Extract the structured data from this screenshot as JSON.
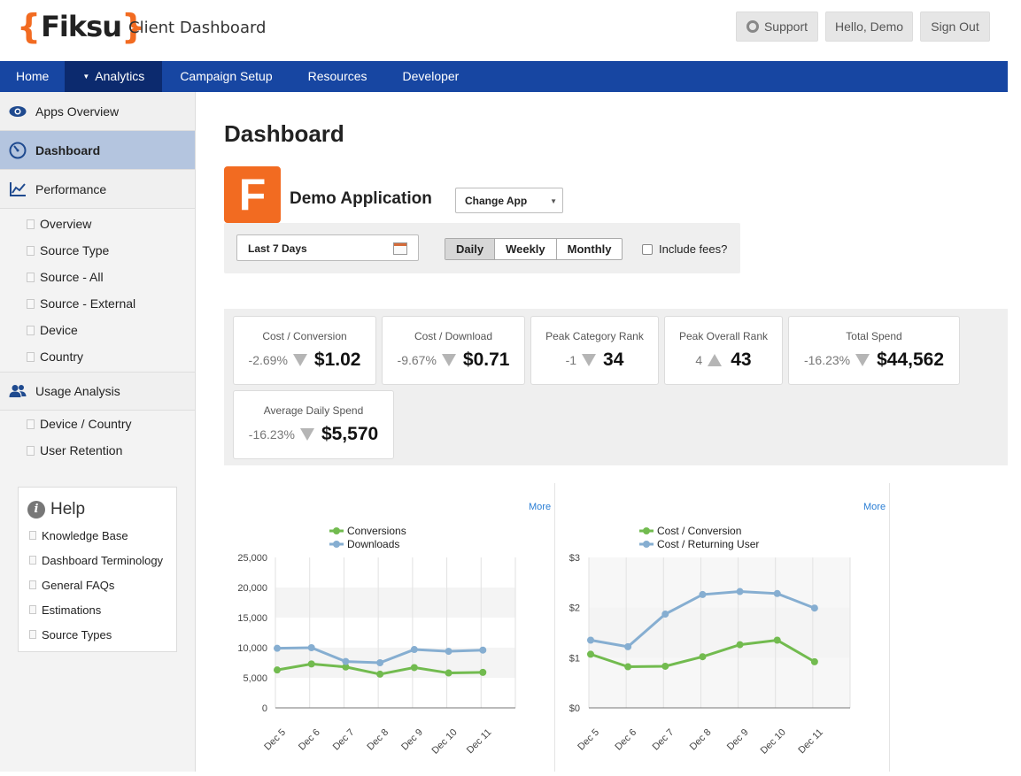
{
  "header": {
    "logo_open": "{",
    "logo_word": "Fiksu",
    "logo_close": "}",
    "title": "Client Dashboard",
    "support": "Support",
    "hello": "Hello, Demo",
    "signout": "Sign Out"
  },
  "nav": {
    "items": [
      "Home",
      "Analytics",
      "Campaign Setup",
      "Resources",
      "Developer"
    ],
    "active": "Analytics"
  },
  "sidebar": {
    "apps_overview": "Apps Overview",
    "dashboard": "Dashboard",
    "performance": "Performance",
    "performance_items": [
      "Overview",
      "Source Type",
      "Source - All",
      "Source - External",
      "Device",
      "Country"
    ],
    "usage_analysis": "Usage Analysis",
    "usage_items": [
      "Device / Country",
      "User Retention"
    ]
  },
  "help": {
    "title": "Help",
    "links": [
      "Knowledge Base",
      "Dashboard Terminology",
      "General FAQs",
      "Estimations",
      "Source Types"
    ]
  },
  "main": {
    "title": "Dashboard",
    "app_letter": "F",
    "app_name": "Demo Application",
    "change_app": "Change App",
    "date_range": "Last 7 Days",
    "periods": [
      "Daily",
      "Weekly",
      "Monthly"
    ],
    "selected_period": "Daily",
    "include_fees": "Include fees?",
    "accent": "#f26b21",
    "nav_color": "#1746a2"
  },
  "kpis": [
    {
      "label": "Cost / Conversion",
      "change": "-2.69%",
      "direction": "down",
      "value": "$1.02"
    },
    {
      "label": "Cost / Download",
      "change": "-9.67%",
      "direction": "down",
      "value": "$0.71"
    },
    {
      "label": "Peak Category Rank",
      "change": "-1",
      "direction": "down",
      "value": "34"
    },
    {
      "label": "Peak Overall Rank",
      "change": "4",
      "direction": "up",
      "value": "43"
    },
    {
      "label": "Total Spend",
      "change": "-16.23%",
      "direction": "down",
      "value": "$44,562"
    },
    {
      "label": "Average Daily Spend",
      "change": "-16.23%",
      "direction": "down",
      "value": "$5,570"
    }
  ],
  "charts": {
    "more_label": "More"
  },
  "chart_data": [
    {
      "type": "line",
      "x": [
        "Dec 5",
        "Dec 6",
        "Dec 7",
        "Dec 8",
        "Dec 9",
        "Dec 10",
        "Dec 11"
      ],
      "ylim": [
        0,
        25000
      ],
      "yticks": [
        "0",
        "5,000",
        "10,000",
        "15,000",
        "20,000",
        "25,000"
      ],
      "series": [
        {
          "name": "Conversions",
          "color": "#72bb4f",
          "values": [
            6300,
            7300,
            6800,
            5600,
            6700,
            5800,
            5900
          ]
        },
        {
          "name": "Downloads",
          "color": "#86aed1",
          "values": [
            9900,
            10000,
            7700,
            7500,
            9700,
            9400,
            9600
          ]
        }
      ]
    },
    {
      "type": "line",
      "x": [
        "Dec 5",
        "Dec 6",
        "Dec 7",
        "Dec 8",
        "Dec 9",
        "Dec 10",
        "Dec 11"
      ],
      "ylim": [
        0,
        3
      ],
      "yticks": [
        "$0",
        "$1",
        "$2",
        "$3"
      ],
      "series": [
        {
          "name": "Cost / Conversion",
          "color": "#72bb4f",
          "values": [
            1.07,
            0.82,
            0.83,
            1.02,
            1.26,
            1.35,
            0.92
          ]
        },
        {
          "name": "Cost / Returning User",
          "color": "#86aed1",
          "values": [
            1.35,
            1.22,
            1.87,
            2.26,
            2.32,
            2.28,
            1.99
          ]
        }
      ]
    }
  ]
}
